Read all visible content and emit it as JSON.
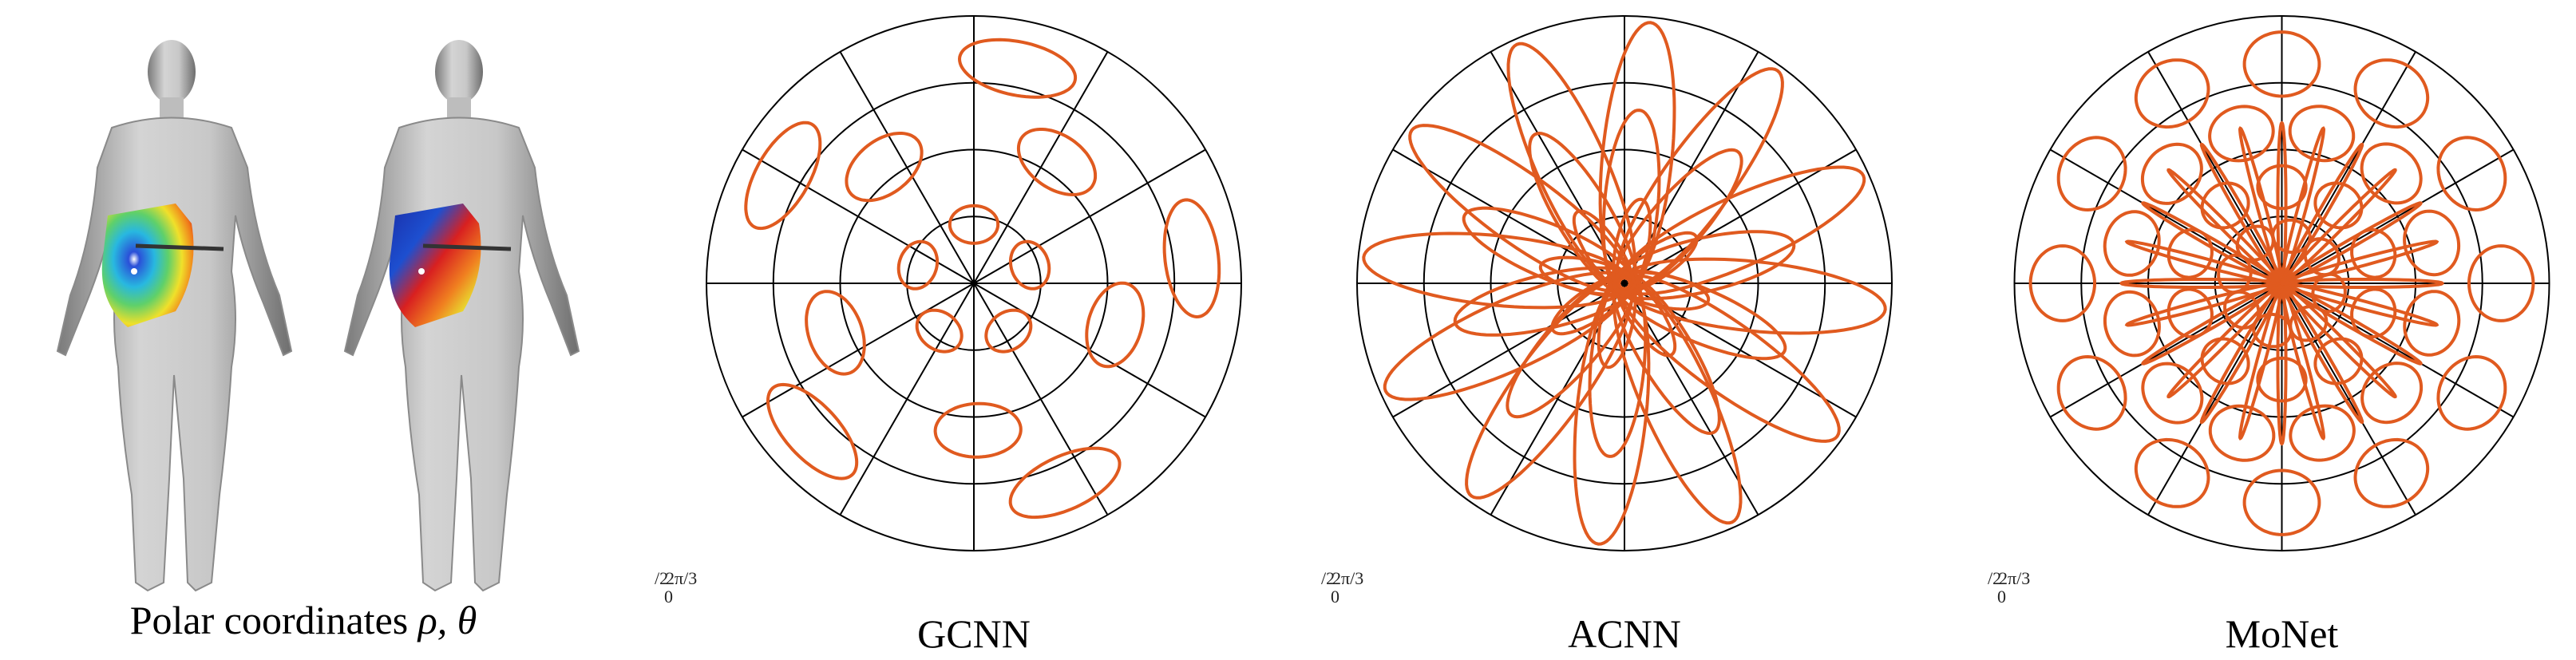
{
  "figure": {
    "bodies_caption_prefix": "Polar coordinates ",
    "bodies_caption_symbols": "ρ, θ",
    "panels": [
      {
        "caption": "GCNN",
        "ticks": {
          "top": "/2",
          "mid": "2π/3",
          "bottom": "0"
        }
      },
      {
        "caption": "ACNN",
        "ticks": {
          "top": "/2",
          "mid": "2π/3",
          "bottom": "0"
        }
      },
      {
        "caption": "MoNet",
        "ticks": {
          "top": "/2",
          "mid": "2π/3",
          "bottom": "0"
        }
      }
    ]
  },
  "colors": {
    "curve": "#e05a1f",
    "grid": "#000000",
    "skin": "#bdbdbd"
  },
  "chart_data": [
    {
      "type": "polar",
      "name": "GCNN",
      "rings": 4,
      "spokes": 12,
      "pattern": "separate-blobs"
    },
    {
      "type": "polar",
      "name": "ACNN",
      "rings": 4,
      "spokes": 12,
      "pattern": "overlapping-ellipses"
    },
    {
      "type": "polar",
      "name": "MoNet",
      "rings": 4,
      "spokes": 12,
      "pattern": "gaussian-mixture"
    }
  ]
}
